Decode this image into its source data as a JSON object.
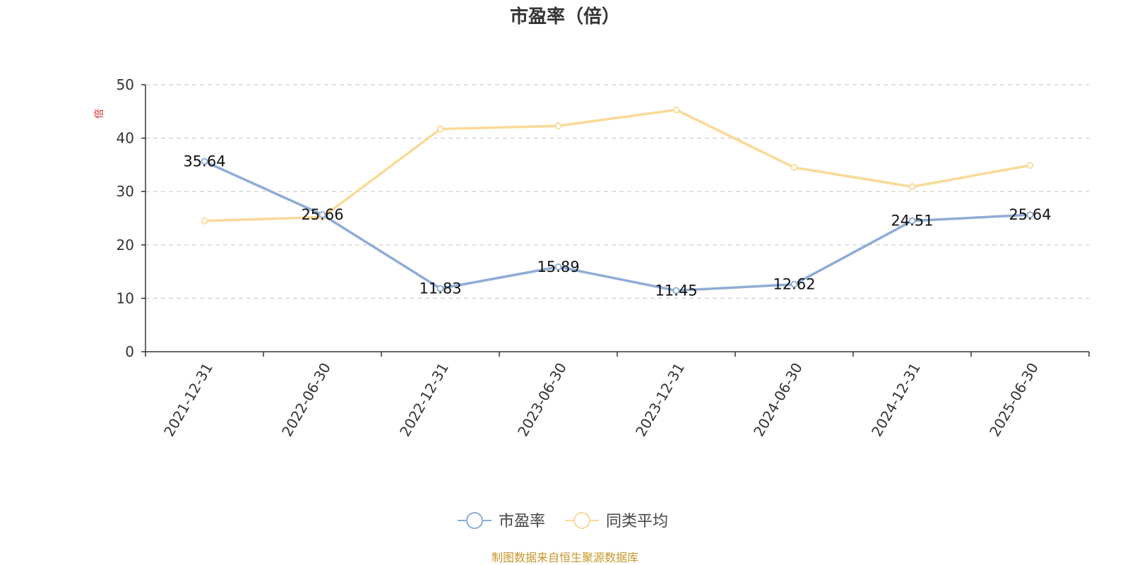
{
  "chart_data": {
    "type": "line",
    "title": "市盈率（倍）",
    "unit": "倍",
    "categories": [
      "2021-12-31",
      "2022-06-30",
      "2022-12-31",
      "2023-06-30",
      "2023-12-31",
      "2024-06-30",
      "2024-12-31",
      "2025-06-30"
    ],
    "ylim": [
      0,
      50
    ],
    "yticks": [
      0,
      10,
      20,
      30,
      40,
      50
    ],
    "grid": true,
    "legend_position": "bottom",
    "series": [
      {
        "name": "市盈率",
        "color": "#8eacd6",
        "values": [
          35.64,
          25.66,
          11.83,
          15.89,
          11.45,
          12.62,
          24.51,
          25.64
        ],
        "labels": [
          "35.64",
          "25.66",
          "11.83",
          "15.89",
          "11.45",
          "12.62",
          "24.51",
          "25.64"
        ]
      },
      {
        "name": "同类平均",
        "color": "#fad998",
        "values": [
          24.5,
          25.2,
          41.7,
          42.3,
          45.3,
          34.5,
          30.9,
          34.9
        ]
      }
    ]
  },
  "source_note": "制图数据来自恒生聚源数据库"
}
